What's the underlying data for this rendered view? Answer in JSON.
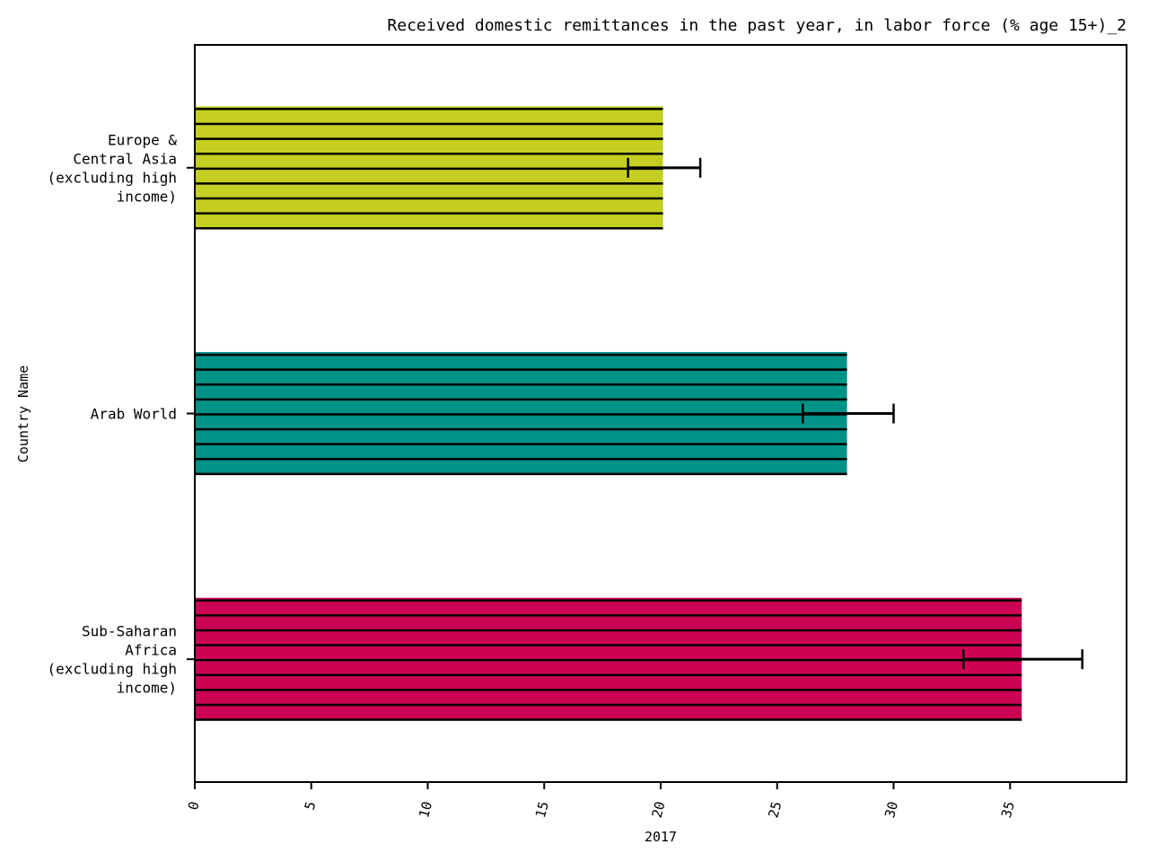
{
  "chart_data": {
    "type": "bar",
    "orientation": "horizontal",
    "title": "Received domestic remittances in the past year, in labor force (% age 15+)_2",
    "xlabel": "2017",
    "ylabel": "Country Name",
    "xlim": [
      0,
      40
    ],
    "xticks": [
      0,
      5,
      10,
      15,
      20,
      25,
      30,
      35
    ],
    "grid": false,
    "legend": "none",
    "hatch": "horizontal lines",
    "categories": [
      [
        "Europe &",
        "Central Asia",
        "(excluding high",
        "income)"
      ],
      [
        "Arab World"
      ],
      [
        "Sub-Saharan",
        "Africa",
        "(excluding high",
        "income)"
      ]
    ],
    "values": [
      20.1,
      28.0,
      35.5
    ],
    "error_low": [
      18.6,
      26.1,
      33.0
    ],
    "error_high": [
      21.7,
      30.0,
      38.1
    ],
    "colors": [
      "#c4cf21",
      "#009187",
      "#cc0353"
    ]
  }
}
